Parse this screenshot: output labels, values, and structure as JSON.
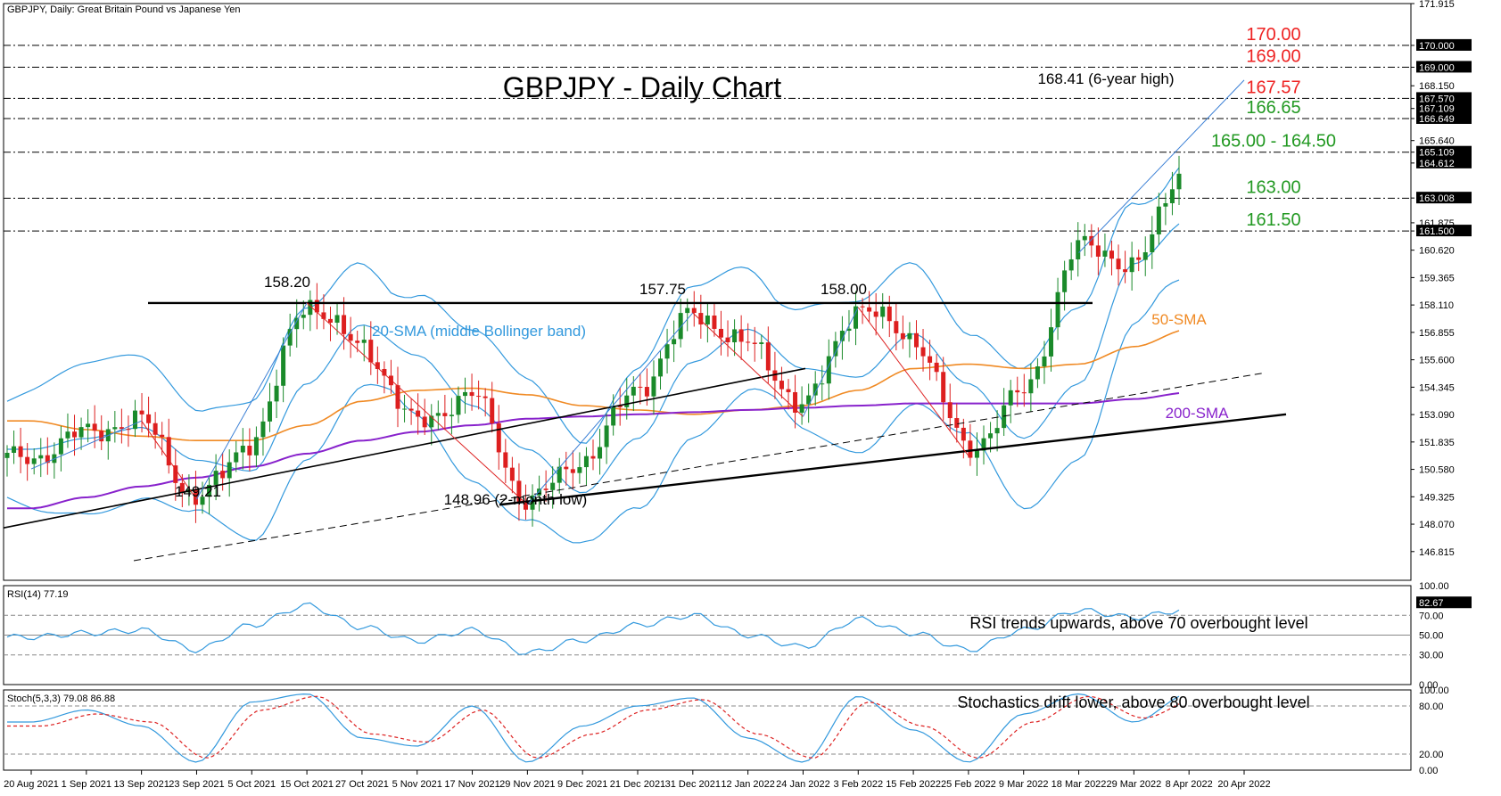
{
  "chart_data": {
    "type": "line",
    "header_text": "GBPJPY, Daily:  Great Britain Pound vs Japanese Yen",
    "title": "GBPJPY - Daily Chart",
    "x_tick_labels": [
      "20 Aug 2021",
      "1 Sep 2021",
      "13 Sep 2021",
      "23 Sep 2021",
      "5 Oct 2021",
      "15 Oct 2021",
      "27 Oct 2021",
      "5 Nov 2021",
      "17 Nov 2021",
      "29 Nov 2021",
      "9 Dec 2021",
      "21 Dec 2021",
      "31 Dec 2021",
      "12 Jan 2022",
      "24 Jan 2022",
      "3 Feb 2022",
      "15 Feb 2022",
      "25 Feb 2022",
      "9 Mar 2022",
      "18 Mar 2022",
      "29 Mar 2022",
      "8 Apr 2022",
      "20 Apr 2022"
    ],
    "price_axis": {
      "ylim": [
        145.5,
        171.915
      ],
      "tick_values": [
        171.915,
        170.0,
        169.0,
        168.15,
        167.57,
        167.109,
        166.649,
        165.64,
        165.109,
        164.612,
        163.008,
        161.875,
        161.5,
        160.62,
        159.365,
        158.11,
        156.855,
        155.6,
        154.345,
        153.09,
        151.835,
        150.58,
        149.325,
        148.07,
        146.815
      ],
      "tick_labels": [
        "171.915",
        "170.000",
        "169.000",
        "168.150",
        "167.570",
        "167.109",
        "166.649",
        "165.640",
        "165.109",
        "164.612",
        "163.008",
        "161.875",
        "161.500",
        "160.620",
        "159.365",
        "158.110",
        "156.855",
        "155.600",
        "154.345",
        "153.090",
        "151.835",
        "150.580",
        "149.325",
        "148.070",
        "146.815"
      ],
      "boxed_labels": [
        "170.000",
        "169.000",
        "167.570",
        "167.109",
        "166.649",
        "165.109",
        "164.612",
        "163.008",
        "161.500"
      ]
    },
    "candles": {
      "x": [
        "20 Aug 2021",
        "1 Sep 2021",
        "13 Sep 2021",
        "23 Sep 2021",
        "5 Oct 2021",
        "15 Oct 2021",
        "27 Oct 2021",
        "5 Nov 2021",
        "17 Nov 2021",
        "29 Nov 2021",
        "9 Dec 2021",
        "21 Dec 2021",
        "31 Dec 2021",
        "12 Jan 2022",
        "24 Jan 2022",
        "3 Feb 2022",
        "15 Feb 2022",
        "25 Feb 2022",
        "9 Mar 2022",
        "18 Mar 2022",
        "29 Mar 2022",
        "8 Apr 2022",
        "20 Apr 2022"
      ],
      "close": [
        151.1,
        152.3,
        152.8,
        149.2,
        151.9,
        158.2,
        156.2,
        152.7,
        154.0,
        149.1,
        151.0,
        154.3,
        157.7,
        156.3,
        153.5,
        158.0,
        156.6,
        151.5,
        154.1,
        160.8,
        160.0,
        164.7,
        167.1
      ]
    },
    "series": [
      {
        "name": "20-SMA (middle Bollinger band)",
        "color": "#3399dd",
        "values": [
          151.5,
          152.0,
          152.5,
          151.0,
          150.5,
          154.5,
          157.2,
          155.8,
          153.5,
          151.5,
          149.5,
          152.0,
          155.5,
          157.0,
          155.2,
          154.8,
          156.8,
          154.5,
          152.0,
          154.5,
          160.0,
          162.0,
          165.5
        ]
      },
      {
        "name": "50-SMA",
        "color": "#f08a24",
        "values": [
          152.8,
          152.4,
          152.1,
          151.9,
          151.9,
          152.6,
          153.7,
          154.2,
          154.3,
          154.0,
          153.5,
          153.3,
          153.1,
          153.3,
          153.5,
          154.2,
          155.2,
          155.4,
          155.2,
          155.4,
          156.2,
          157.0,
          158.1
        ]
      },
      {
        "name": "200-SMA",
        "color": "#8822cc",
        "values": [
          148.8,
          149.3,
          149.8,
          150.2,
          150.7,
          151.3,
          151.9,
          152.3,
          152.6,
          152.9,
          153.0,
          153.1,
          153.2,
          153.3,
          153.4,
          153.5,
          153.6,
          153.6,
          153.6,
          153.6,
          153.8,
          154.1,
          154.5
        ]
      }
    ],
    "horizontal_levels": [
      {
        "value": 170.0,
        "label": "170.00",
        "color": "#ee2222"
      },
      {
        "value": 169.0,
        "label": "169.00",
        "color": "#ee2222"
      },
      {
        "value": 167.57,
        "label": "167.57",
        "color": "#ee2222"
      },
      {
        "value": 166.65,
        "label": "166.65",
        "color": "#229922"
      },
      {
        "value": 165.109,
        "label": "165.00 - 164.50",
        "color": "#229922"
      },
      {
        "value": 163.0,
        "label": "163.00",
        "color": "#229922"
      },
      {
        "value": 161.5,
        "label": "161.50",
        "color": "#229922"
      }
    ],
    "annotations": [
      {
        "text": "158.20",
        "x": "15 Oct 2021",
        "y": 158.2
      },
      {
        "text": "157.75",
        "x": "31 Dec 2021",
        "y": 157.75
      },
      {
        "text": "158.00",
        "x": "3 Feb 2022",
        "y": 158.0
      },
      {
        "text": "149.21",
        "x": "23 Sep 2021",
        "y": 149.21
      },
      {
        "text": "148.96 (2-month low)",
        "x": "29 Nov 2021",
        "y": 148.96
      },
      {
        "text": "168.41 (6-year high)",
        "x": "20 Apr 2022",
        "y": 168.41
      },
      {
        "text": "20-SMA (middle Bollinger band)",
        "color": "#3399dd"
      },
      {
        "text": "50-SMA",
        "color": "#f08a24"
      },
      {
        "text": "200-SMA",
        "color": "#8822cc"
      }
    ],
    "grid": false,
    "rsi": {
      "header": "RSI(14) 77.19",
      "ylim": [
        0,
        100
      ],
      "tick_labels": [
        "100.00",
        "82.67",
        "70.00",
        "50.00",
        "30.00",
        "0.00"
      ],
      "tick_values": [
        100,
        82.67,
        70,
        50,
        30,
        0
      ],
      "values": [
        48,
        52,
        55,
        35,
        60,
        80,
        58,
        44,
        55,
        32,
        45,
        60,
        70,
        50,
        38,
        66,
        52,
        35,
        55,
        75,
        68,
        76,
        77.19
      ],
      "annotation": "RSI trends upwards, above 70 overbought level"
    },
    "stochastic": {
      "header": "Stoch(5,3,3) 79.08 86.88",
      "ylim": [
        0,
        100
      ],
      "tick_labels": [
        "100.00",
        "80.00",
        "20.00",
        "0.00"
      ],
      "tick_values": [
        100,
        80,
        20,
        0
      ],
      "k_values": [
        60,
        75,
        55,
        10,
        85,
        95,
        40,
        30,
        80,
        10,
        55,
        80,
        90,
        40,
        10,
        92,
        50,
        10,
        70,
        95,
        60,
        95,
        79.08
      ],
      "d_values": [
        55,
        70,
        60,
        15,
        75,
        92,
        45,
        35,
        75,
        15,
        45,
        75,
        88,
        45,
        15,
        85,
        55,
        15,
        60,
        92,
        65,
        90,
        86.88
      ],
      "annotation": "Stochastics drift lower, above 80 overbought level"
    }
  }
}
